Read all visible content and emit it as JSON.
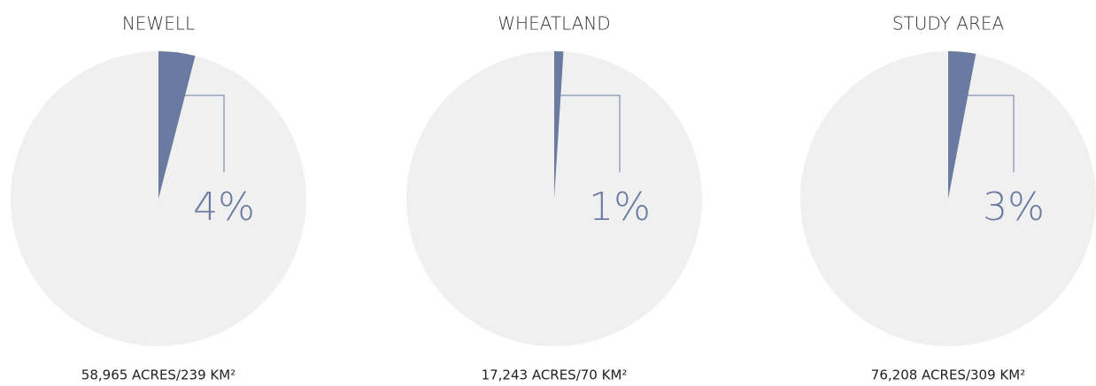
{
  "chart_data": [
    {
      "type": "pie",
      "title": "NEWELL",
      "values": [
        4
      ],
      "value_labels": [
        "4%"
      ],
      "annotation": "58,965 ACRES/239 KM²",
      "color": "#6b7aa1",
      "background_color": "#f0f0f0"
    },
    {
      "type": "pie",
      "title": "WHEATLAND",
      "values": [
        1
      ],
      "value_labels": [
        "1%"
      ],
      "annotation": "17,243 ACRES/70 KM²",
      "color": "#6b7aa1",
      "background_color": "#f0f0f0"
    },
    {
      "type": "pie",
      "title": "STUDY AREA",
      "values": [
        3
      ],
      "value_labels": [
        "3%"
      ],
      "annotation": "76,208 ACRES/309 KM²",
      "color": "#6b7aa1",
      "background_color": "#f0f0f0"
    }
  ]
}
